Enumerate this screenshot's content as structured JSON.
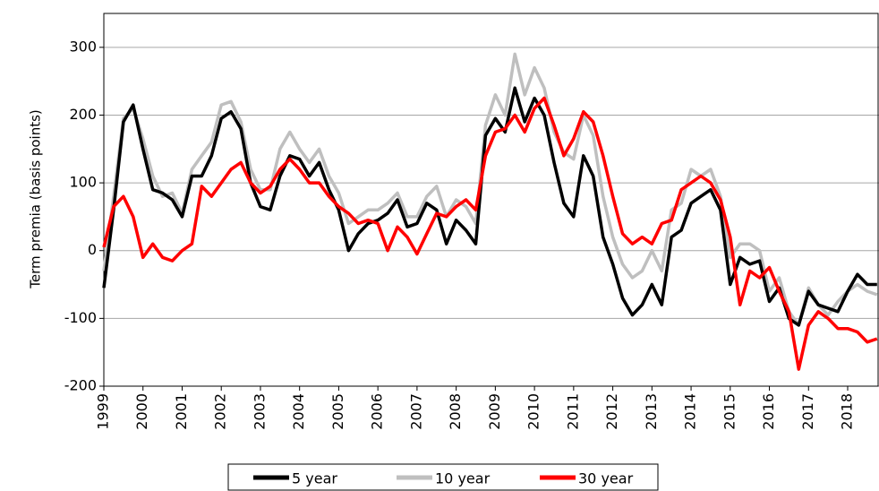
{
  "chart_data": {
    "type": "line",
    "ylabel": "Term premia (basis points)",
    "x": [
      1999,
      1999.25,
      1999.5,
      1999.75,
      2000,
      2000.25,
      2000.5,
      2000.75,
      2001,
      2001.25,
      2001.5,
      2001.75,
      2002,
      2002.25,
      2002.5,
      2002.75,
      2003,
      2003.25,
      2003.5,
      2003.75,
      2004,
      2004.25,
      2004.5,
      2004.75,
      2005,
      2005.25,
      2005.5,
      2005.75,
      2006,
      2006.25,
      2006.5,
      2006.75,
      2007,
      2007.25,
      2007.5,
      2007.75,
      2008,
      2008.25,
      2008.5,
      2008.75,
      2009,
      2009.25,
      2009.5,
      2009.75,
      2010,
      2010.25,
      2010.5,
      2010.75,
      2011,
      2011.25,
      2011.5,
      2011.75,
      2012,
      2012.25,
      2012.5,
      2012.75,
      2013,
      2013.25,
      2013.5,
      2013.75,
      2014,
      2014.25,
      2014.5,
      2014.75,
      2015,
      2015.25,
      2015.5,
      2015.75,
      2016,
      2016.25,
      2016.5,
      2016.75,
      2017,
      2017.25,
      2017.5,
      2017.75,
      2018,
      2018.25,
      2018.5,
      2018.75
    ],
    "series": [
      {
        "name": "5 year",
        "color": "#000000",
        "values": [
          -55,
          60,
          190,
          215,
          150,
          90,
          85,
          75,
          50,
          110,
          110,
          140,
          195,
          205,
          180,
          100,
          65,
          60,
          110,
          140,
          135,
          110,
          130,
          90,
          60,
          0,
          25,
          40,
          45,
          55,
          75,
          35,
          40,
          70,
          60,
          10,
          45,
          30,
          10,
          170,
          195,
          175,
          240,
          190,
          225,
          200,
          130,
          70,
          50,
          140,
          110,
          20,
          -20,
          -70,
          -95,
          -80,
          -50,
          -80,
          20,
          30,
          70,
          80,
          90,
          60,
          -50,
          -10,
          -20,
          -15,
          -75,
          -55,
          -100,
          -110,
          -60,
          -80,
          -85,
          -90,
          -60,
          -35,
          -50,
          -50
        ]
      },
      {
        "name": "10 year",
        "color": "#bfbfbf",
        "values": [
          -30,
          80,
          195,
          210,
          165,
          110,
          80,
          85,
          55,
          120,
          140,
          160,
          215,
          220,
          190,
          120,
          90,
          90,
          150,
          175,
          150,
          130,
          150,
          110,
          85,
          40,
          50,
          60,
          60,
          70,
          85,
          50,
          50,
          80,
          95,
          50,
          75,
          65,
          40,
          185,
          230,
          200,
          290,
          230,
          270,
          240,
          175,
          145,
          135,
          200,
          170,
          80,
          20,
          -20,
          -40,
          -30,
          0,
          -30,
          60,
          70,
          120,
          110,
          120,
          80,
          -10,
          10,
          10,
          0,
          -60,
          -40,
          -90,
          -110,
          -55,
          -80,
          -95,
          -75,
          -60,
          -50,
          -60,
          -65
        ]
      },
      {
        "name": "30 year",
        "color": "#ff0000",
        "values": [
          5,
          65,
          80,
          50,
          -10,
          10,
          -10,
          -15,
          0,
          10,
          95,
          80,
          100,
          120,
          130,
          100,
          85,
          95,
          120,
          135,
          120,
          100,
          100,
          80,
          65,
          55,
          40,
          45,
          40,
          0,
          35,
          20,
          -5,
          25,
          55,
          50,
          65,
          75,
          60,
          140,
          175,
          180,
          200,
          175,
          210,
          225,
          185,
          140,
          165,
          205,
          190,
          140,
          80,
          25,
          10,
          20,
          10,
          40,
          45,
          90,
          100,
          110,
          100,
          75,
          20,
          -80,
          -30,
          -40,
          -25,
          -60,
          -90,
          -175,
          -110,
          -90,
          -100,
          -115,
          -115,
          -120,
          -135,
          -130
        ]
      }
    ],
    "xlim": [
      1999,
      2018.8
    ],
    "xticks": [
      1999,
      2000,
      2001,
      2002,
      2003,
      2004,
      2005,
      2006,
      2007,
      2008,
      2009,
      2010,
      2011,
      2012,
      2013,
      2014,
      2015,
      2016,
      2017,
      2018
    ],
    "ylim": [
      -200,
      350
    ],
    "yticks": [
      -200,
      -100,
      0,
      100,
      200,
      300
    ],
    "grid": true,
    "legend": "bottom"
  }
}
